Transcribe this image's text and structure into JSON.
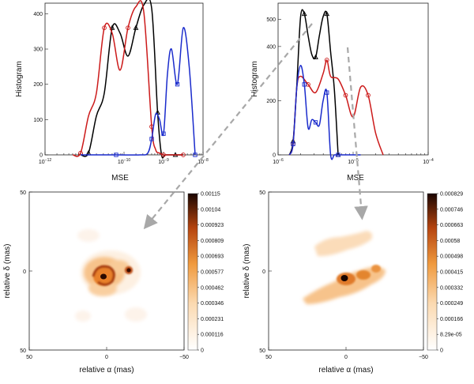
{
  "chart_data": [
    {
      "type": "line",
      "panel": "top-left",
      "xlabel": "MSE",
      "ylabel": "Histogram",
      "x_scale": "log",
      "xlim_exponents": [
        -12,
        -8
      ],
      "x_ticks": [
        {
          "mantissa": "10",
          "exp": "−12",
          "exponent_value": -12
        },
        {
          "mantissa": "10",
          "exp": "−10",
          "exponent_value": -10
        },
        {
          "mantissa": "10",
          "exp": "−9",
          "exponent_value": -9
        },
        {
          "mantissa": "10",
          "exp": "−8",
          "exponent_value": -8
        }
      ],
      "ylim": [
        0,
        430
      ],
      "y_ticks": [
        "0",
        "100",
        "200",
        "300",
        "400"
      ],
      "y_tick_values": [
        0,
        100,
        200,
        300,
        400
      ],
      "series": [
        {
          "color": "#000000",
          "marker": "triangle",
          "log10_x": [
            -11.1,
            -10.9,
            -10.7,
            -10.5,
            -10.3,
            -10.1,
            -9.9,
            -9.7,
            -9.5,
            -9.3,
            -9.15,
            -9.05,
            -8.95,
            -8.7,
            -8.5
          ],
          "values": [
            0,
            5,
            110,
            175,
            360,
            345,
            280,
            360,
            425,
            415,
            120,
            0,
            0,
            0,
            0
          ]
        },
        {
          "color": "#cc1a1a",
          "marker": "circle",
          "log10_x": [
            -11.3,
            -11.1,
            -10.9,
            -10.7,
            -10.5,
            -10.3,
            -10.1,
            -9.9,
            -9.7,
            -9.5,
            -9.3,
            -9.2,
            -9.1,
            -9.0,
            -8.9,
            -8.7,
            -8.5
          ],
          "values": [
            0,
            5,
            110,
            175,
            360,
            345,
            240,
            360,
            420,
            405,
            80,
            15,
            5,
            0,
            0,
            0,
            0
          ]
        },
        {
          "color": "#1a2bcc",
          "marker": "square",
          "log10_x": [
            -11.1,
            -10.2,
            -9.6,
            -9.4,
            -9.3,
            -9.2,
            -9.1,
            -9.0,
            -8.9,
            -8.8,
            -8.65,
            -8.5,
            -8.35,
            -8.2
          ],
          "values": [
            0,
            0,
            0,
            5,
            45,
            115,
            100,
            60,
            230,
            300,
            200,
            360,
            250,
            0
          ]
        }
      ]
    },
    {
      "type": "line",
      "panel": "top-right",
      "xlabel": "MSE",
      "ylabel": "Histogram",
      "x_scale": "log",
      "xlim_exponents": [
        -6,
        -4
      ],
      "x_ticks": [
        {
          "mantissa": "10",
          "exp": "−6",
          "exponent_value": -6
        },
        {
          "mantissa": "10",
          "exp": "−5",
          "exponent_value": -5
        },
        {
          "mantissa": "10",
          "exp": "−4",
          "exponent_value": -4
        }
      ],
      "ylim": [
        0,
        560
      ],
      "y_ticks": [
        "0",
        "200",
        "400",
        "500"
      ],
      "y_tick_values": [
        0,
        200,
        400,
        500
      ],
      "series": [
        {
          "color": "#000000",
          "marker": "triangle",
          "log10_x": [
            -5.85,
            -5.8,
            -5.75,
            -5.7,
            -5.65,
            -5.6,
            -5.55,
            -5.5,
            -5.45,
            -5.4,
            -5.35,
            -5.3,
            -5.25,
            -5.2
          ],
          "values": [
            0,
            50,
            260,
            510,
            520,
            440,
            370,
            360,
            440,
            510,
            520,
            380,
            240,
            0
          ]
        },
        {
          "color": "#cc1a1a",
          "marker": "circle",
          "log10_x": [
            -5.85,
            -5.8,
            -5.75,
            -5.7,
            -5.6,
            -5.5,
            -5.4,
            -5.35,
            -5.3,
            -5.2,
            -5.1,
            -5.0,
            -4.9,
            -4.8,
            -4.7,
            -4.6
          ],
          "values": [
            0,
            40,
            250,
            290,
            260,
            230,
            300,
            350,
            290,
            280,
            220,
            140,
            250,
            220,
            80,
            0
          ]
        },
        {
          "color": "#1a2bcc",
          "marker": "square",
          "log10_x": [
            -5.85,
            -5.8,
            -5.75,
            -5.7,
            -5.65,
            -5.6,
            -5.55,
            -5.5,
            -5.45,
            -5.4,
            -5.35,
            -5.3,
            -5.25,
            -5.2,
            -5.0,
            -4.9
          ],
          "values": [
            0,
            40,
            250,
            330,
            260,
            100,
            130,
            120,
            110,
            200,
            230,
            0,
            0,
            0,
            0,
            0
          ]
        }
      ]
    },
    {
      "type": "heatmap",
      "panel": "bottom-left",
      "xlabel": "relative α (mas)",
      "ylabel": "relative δ (mas)",
      "xlim": [
        50,
        -50
      ],
      "ylim": [
        -50,
        50
      ],
      "x_ticks": [
        "50",
        "0",
        "−50"
      ],
      "y_ticks": [
        "50",
        "0",
        "50"
      ],
      "colorbar_ticks": [
        "0.00115",
        "0.00104",
        "0.000923",
        "0.000809",
        "0.000693",
        "0.000577",
        "0.000462",
        "0.000346",
        "0.000231",
        "0.000116",
        "0"
      ],
      "colormap": "white-orange-black"
    },
    {
      "type": "heatmap",
      "panel": "bottom-right",
      "xlabel": "relative α (mas)",
      "ylabel": "relative δ (mas)",
      "xlim": [
        50,
        -50
      ],
      "ylim": [
        -50,
        50
      ],
      "x_ticks": [
        "50",
        "0",
        "−50"
      ],
      "y_ticks": [
        "50",
        "0",
        "50"
      ],
      "colorbar_ticks": [
        "0.000829",
        "0.000746",
        "0.000663",
        "0.00058",
        "0.000498",
        "0.000415",
        "0.000332",
        "0.000249",
        "0.000166",
        "8.29e-05",
        "0"
      ],
      "colormap": "white-orange-black"
    }
  ]
}
